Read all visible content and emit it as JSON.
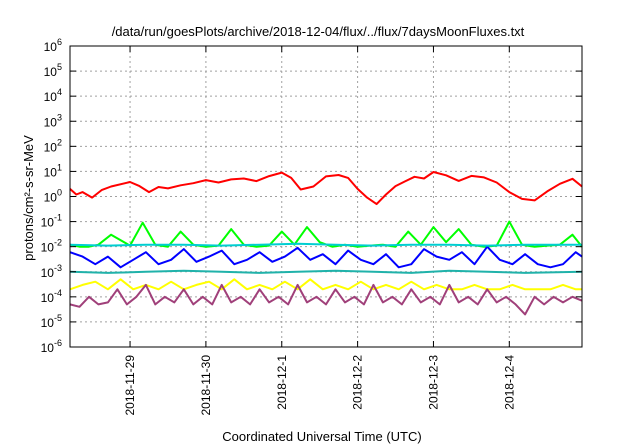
{
  "chart_data": {
    "type": "line",
    "title": "/data/run/goesPlots/archive/2018-12-04/flux/../flux/7daysMoonFluxes.txt",
    "xlabel": "Coordinated Universal Time (UTC)",
    "ylabel": "protons/cm²-s-sr-MeV",
    "yscale": "log",
    "ylim": [
      1e-06,
      1000000.0
    ],
    "y_ticks": [
      {
        "value": 1e-06,
        "base": "10",
        "exp": "-6"
      },
      {
        "value": 1e-05,
        "base": "10",
        "exp": "-5"
      },
      {
        "value": 0.0001,
        "base": "10",
        "exp": "-4"
      },
      {
        "value": 0.001,
        "base": "10",
        "exp": "-3"
      },
      {
        "value": 0.01,
        "base": "10",
        "exp": "-2"
      },
      {
        "value": 0.1,
        "base": "10",
        "exp": "-1"
      },
      {
        "value": 1.0,
        "base": "10",
        "exp": "0"
      },
      {
        "value": 10.0,
        "base": "10",
        "exp": "1"
      },
      {
        "value": 100.0,
        "base": "10",
        "exp": "2"
      },
      {
        "value": 1000.0,
        "base": "10",
        "exp": "3"
      },
      {
        "value": 10000.0,
        "base": "10",
        "exp": "4"
      },
      {
        "value": 100000.0,
        "base": "10",
        "exp": "5"
      },
      {
        "value": 1000000.0,
        "base": "10",
        "exp": "6"
      }
    ],
    "xlim": [
      "2018-11-28T05:00",
      "2018-12-04T23:00"
    ],
    "x_ticks": [
      "2018-11-29",
      "2018-11-30",
      "2018-12-1",
      "2018-12-2",
      "2018-12-3",
      "2018-12-4"
    ],
    "x_tick_dates": [
      "2018-11-29T00:00",
      "2018-11-30T00:00",
      "2018-12-01T00:00",
      "2018-12-02T00:00",
      "2018-12-03T00:00",
      "2018-12-04T00:00"
    ],
    "grid": true,
    "legend": "none",
    "series": [
      {
        "color": "#ff0000",
        "x": [
          "2018-11-28T05:00",
          "2018-11-28T07:00",
          "2018-11-28T09:00",
          "2018-11-28T12:00",
          "2018-11-28T15:00",
          "2018-11-28T18:00",
          "2018-11-29T00:00",
          "2018-11-29T03:00",
          "2018-11-29T06:00",
          "2018-11-29T09:00",
          "2018-11-29T12:00",
          "2018-11-29T16:00",
          "2018-11-29T20:00",
          "2018-11-30T00:00",
          "2018-11-30T04:00",
          "2018-11-30T08:00",
          "2018-11-30T12:00",
          "2018-11-30T16:00",
          "2018-11-30T20:00",
          "2018-12-01T00:00",
          "2018-12-01T03:00",
          "2018-12-01T06:00",
          "2018-12-01T10:00",
          "2018-12-01T14:00",
          "2018-12-01T18:00",
          "2018-12-01T21:00",
          "2018-12-02T00:00",
          "2018-12-02T03:00",
          "2018-12-02T06:00",
          "2018-12-02T09:00",
          "2018-12-02T12:00",
          "2018-12-02T15:00",
          "2018-12-02T18:00",
          "2018-12-02T21:00",
          "2018-12-03T00:00",
          "2018-12-03T04:00",
          "2018-12-03T08:00",
          "2018-12-03T12:00",
          "2018-12-03T16:00",
          "2018-12-03T20:00",
          "2018-12-04T00:00",
          "2018-12-04T04:00",
          "2018-12-04T08:00",
          "2018-12-04T12:00",
          "2018-12-04T16:00",
          "2018-12-04T20:00",
          "2018-12-04T23:00"
        ],
        "y": [
          2.0,
          1.2,
          1.5,
          0.9,
          1.8,
          2.5,
          3.8,
          2.6,
          1.5,
          2.4,
          2.1,
          2.8,
          3.4,
          4.5,
          3.6,
          4.8,
          5.2,
          4.1,
          6.5,
          9.0,
          5.5,
          1.9,
          2.5,
          6.3,
          7.2,
          5.5,
          2.0,
          0.9,
          0.5,
          1.2,
          2.6,
          4.0,
          6.1,
          5.2,
          9.5,
          7.0,
          4.2,
          6.6,
          5.8,
          3.6,
          1.5,
          0.8,
          0.7,
          1.6,
          3.2,
          5.1,
          2.5
        ]
      },
      {
        "color": "#00ff00",
        "x": [
          "2018-11-28T05:00",
          "2018-11-28T08:00",
          "2018-11-28T11:00",
          "2018-11-28T14:00",
          "2018-11-28T18:00",
          "2018-11-29T00:00",
          "2018-11-29T04:00",
          "2018-11-29T08:00",
          "2018-11-29T12:00",
          "2018-11-29T16:00",
          "2018-11-29T20:00",
          "2018-11-30T00:00",
          "2018-11-30T04:00",
          "2018-11-30T08:00",
          "2018-11-30T12:00",
          "2018-11-30T16:00",
          "2018-11-30T20:00",
          "2018-12-01T00:00",
          "2018-12-01T04:00",
          "2018-12-01T08:00",
          "2018-12-01T12:00",
          "2018-12-01T16:00",
          "2018-12-01T20:00",
          "2018-12-02T00:00",
          "2018-12-02T04:00",
          "2018-12-02T08:00",
          "2018-12-02T12:00",
          "2018-12-02T16:00",
          "2018-12-02T20:00",
          "2018-12-03T00:00",
          "2018-12-03T04:00",
          "2018-12-03T08:00",
          "2018-12-03T12:00",
          "2018-12-03T16:00",
          "2018-12-03T20:00",
          "2018-12-04T00:00",
          "2018-12-04T04:00",
          "2018-12-04T08:00",
          "2018-12-04T12:00",
          "2018-12-04T16:00",
          "2018-12-04T20:00",
          "2018-12-04T23:00"
        ],
        "y": [
          0.012,
          0.01,
          0.01,
          0.012,
          0.03,
          0.011,
          0.09,
          0.012,
          0.01,
          0.04,
          0.012,
          0.01,
          0.011,
          0.05,
          0.012,
          0.01,
          0.011,
          0.04,
          0.012,
          0.06,
          0.015,
          0.01,
          0.012,
          0.01,
          0.011,
          0.012,
          0.01,
          0.04,
          0.012,
          0.06,
          0.015,
          0.05,
          0.012,
          0.01,
          0.011,
          0.1,
          0.012,
          0.01,
          0.011,
          0.012,
          0.03,
          0.01
        ]
      },
      {
        "color": "#0000ff",
        "x": [
          "2018-11-28T05:00",
          "2018-11-28T09:00",
          "2018-11-28T13:00",
          "2018-11-28T17:00",
          "2018-11-28T21:00",
          "2018-11-29T01:00",
          "2018-11-29T05:00",
          "2018-11-29T09:00",
          "2018-11-29T13:00",
          "2018-11-29T17:00",
          "2018-11-29T21:00",
          "2018-11-30T01:00",
          "2018-11-30T05:00",
          "2018-11-30T09:00",
          "2018-11-30T13:00",
          "2018-11-30T17:00",
          "2018-11-30T21:00",
          "2018-12-01T01:00",
          "2018-12-01T05:00",
          "2018-12-01T09:00",
          "2018-12-01T13:00",
          "2018-12-01T17:00",
          "2018-12-01T21:00",
          "2018-12-02T01:00",
          "2018-12-02T05:00",
          "2018-12-02T09:00",
          "2018-12-02T13:00",
          "2018-12-02T17:00",
          "2018-12-02T21:00",
          "2018-12-03T01:00",
          "2018-12-03T05:00",
          "2018-12-03T09:00",
          "2018-12-03T13:00",
          "2018-12-03T17:00",
          "2018-12-03T21:00",
          "2018-12-04T01:00",
          "2018-12-04T05:00",
          "2018-12-04T09:00",
          "2018-12-04T13:00",
          "2018-12-04T17:00",
          "2018-12-04T21:00",
          "2018-12-04T23:00"
        ],
        "y": [
          0.006,
          0.004,
          0.002,
          0.004,
          0.0015,
          0.003,
          0.006,
          0.002,
          0.003,
          0.008,
          0.0025,
          0.004,
          0.007,
          0.002,
          0.003,
          0.006,
          0.0025,
          0.004,
          0.009,
          0.003,
          0.005,
          0.002,
          0.007,
          0.003,
          0.002,
          0.005,
          0.0015,
          0.002,
          0.008,
          0.004,
          0.003,
          0.006,
          0.002,
          0.01,
          0.003,
          0.002,
          0.005,
          0.002,
          0.0015,
          0.002,
          0.006,
          0.004
        ]
      },
      {
        "color": "#00ced1",
        "x": [
          "2018-11-28T05:00",
          "2018-11-28T17:00",
          "2018-11-29T05:00",
          "2018-11-29T17:00",
          "2018-11-30T05:00",
          "2018-11-30T17:00",
          "2018-12-01T05:00",
          "2018-12-01T17:00",
          "2018-12-02T05:00",
          "2018-12-02T17:00",
          "2018-12-03T05:00",
          "2018-12-03T17:00",
          "2018-12-04T05:00",
          "2018-12-04T23:00"
        ],
        "y": [
          0.012,
          0.011,
          0.012,
          0.012,
          0.011,
          0.012,
          0.013,
          0.012,
          0.011,
          0.012,
          0.012,
          0.011,
          0.012,
          0.012
        ]
      },
      {
        "color": "#20b2aa",
        "x": [
          "2018-11-28T05:00",
          "2018-11-28T17:00",
          "2018-11-29T05:00",
          "2018-11-29T17:00",
          "2018-11-30T05:00",
          "2018-11-30T17:00",
          "2018-12-01T05:00",
          "2018-12-01T17:00",
          "2018-12-02T05:00",
          "2018-12-02T17:00",
          "2018-12-03T05:00",
          "2018-12-03T17:00",
          "2018-12-04T05:00",
          "2018-12-04T23:00"
        ],
        "y": [
          0.001,
          0.0009,
          0.001,
          0.0011,
          0.001,
          0.0009,
          0.001,
          0.0011,
          0.001,
          0.0009,
          0.0011,
          0.001,
          0.0009,
          0.001
        ]
      },
      {
        "color": "#ffff00",
        "x": [
          "2018-11-28T05:00",
          "2018-11-28T09:00",
          "2018-11-28T13:00",
          "2018-11-28T17:00",
          "2018-11-28T21:00",
          "2018-11-29T01:00",
          "2018-11-29T05:00",
          "2018-11-29T09:00",
          "2018-11-29T13:00",
          "2018-11-29T17:00",
          "2018-11-29T21:00",
          "2018-11-30T01:00",
          "2018-11-30T05:00",
          "2018-11-30T09:00",
          "2018-11-30T13:00",
          "2018-11-30T17:00",
          "2018-11-30T21:00",
          "2018-12-01T01:00",
          "2018-12-01T05:00",
          "2018-12-01T09:00",
          "2018-12-01T13:00",
          "2018-12-01T17:00",
          "2018-12-01T21:00",
          "2018-12-02T01:00",
          "2018-12-02T05:00",
          "2018-12-02T09:00",
          "2018-12-02T13:00",
          "2018-12-02T17:00",
          "2018-12-02T21:00",
          "2018-12-03T01:00",
          "2018-12-03T05:00",
          "2018-12-03T09:00",
          "2018-12-03T13:00",
          "2018-12-03T17:00",
          "2018-12-03T21:00",
          "2018-12-04T01:00",
          "2018-12-04T05:00",
          "2018-12-04T09:00",
          "2018-12-04T13:00",
          "2018-12-04T17:00",
          "2018-12-04T21:00",
          "2018-12-04T23:00"
        ],
        "y": [
          0.0002,
          0.0003,
          0.0004,
          0.0002,
          0.0005,
          0.0002,
          0.0003,
          0.0002,
          0.0004,
          0.0002,
          0.0003,
          0.0004,
          0.0002,
          0.0005,
          0.0002,
          0.0003,
          0.0002,
          0.0004,
          0.0002,
          0.0005,
          0.0002,
          0.0003,
          0.0002,
          0.0004,
          0.0002,
          0.0003,
          0.0002,
          0.0004,
          0.0002,
          0.0003,
          0.0002,
          0.0002,
          0.0003,
          0.0002,
          0.0002,
          0.0003,
          0.0002,
          0.0002,
          0.0002,
          0.0003,
          0.0002,
          0.0002
        ]
      },
      {
        "color": "#a0407a",
        "x": [
          "2018-11-28T05:00",
          "2018-11-28T08:00",
          "2018-11-28T11:00",
          "2018-11-28T14:00",
          "2018-11-28T17:00",
          "2018-11-28T20:00",
          "2018-11-28T23:00",
          "2018-11-29T02:00",
          "2018-11-29T05:00",
          "2018-11-29T08:00",
          "2018-11-29T11:00",
          "2018-11-29T14:00",
          "2018-11-29T17:00",
          "2018-11-29T20:00",
          "2018-11-29T23:00",
          "2018-11-30T02:00",
          "2018-11-30T05:00",
          "2018-11-30T08:00",
          "2018-11-30T11:00",
          "2018-11-30T14:00",
          "2018-11-30T17:00",
          "2018-11-30T20:00",
          "2018-11-30T23:00",
          "2018-12-01T02:00",
          "2018-12-01T05:00",
          "2018-12-01T08:00",
          "2018-12-01T11:00",
          "2018-12-01T14:00",
          "2018-12-01T17:00",
          "2018-12-01T20:00",
          "2018-12-01T23:00",
          "2018-12-02T02:00",
          "2018-12-02T05:00",
          "2018-12-02T08:00",
          "2018-12-02T11:00",
          "2018-12-02T14:00",
          "2018-12-02T17:00",
          "2018-12-02T20:00",
          "2018-12-02T23:00",
          "2018-12-03T02:00",
          "2018-12-03T05:00",
          "2018-12-03T08:00",
          "2018-12-03T11:00",
          "2018-12-03T14:00",
          "2018-12-03T17:00",
          "2018-12-03T20:00",
          "2018-12-03T23:00",
          "2018-12-04T02:00",
          "2018-12-04T05:00",
          "2018-12-04T08:00",
          "2018-12-04T11:00",
          "2018-12-04T14:00",
          "2018-12-04T17:00",
          "2018-12-04T20:00",
          "2018-12-04T23:00"
        ],
        "y": [
          5e-05,
          4e-05,
          0.0001,
          5e-05,
          6e-05,
          0.0002,
          5e-05,
          0.0001,
          0.0003,
          5e-05,
          0.0001,
          6e-05,
          0.0002,
          5e-05,
          0.0001,
          5e-05,
          0.0003,
          6e-05,
          0.0001,
          5e-05,
          0.0002,
          6e-05,
          0.0001,
          5e-05,
          0.0003,
          6e-05,
          0.0001,
          5e-05,
          0.0002,
          6e-05,
          0.0001,
          5e-05,
          0.0003,
          6e-05,
          0.0001,
          5e-05,
          0.0002,
          6e-05,
          0.0001,
          5e-05,
          0.0003,
          6e-05,
          0.0001,
          5e-05,
          0.0002,
          6e-05,
          0.0001,
          5e-05,
          2e-05,
          0.0001,
          5e-05,
          0.0001,
          6e-05,
          0.0001,
          7e-05
        ]
      }
    ]
  }
}
